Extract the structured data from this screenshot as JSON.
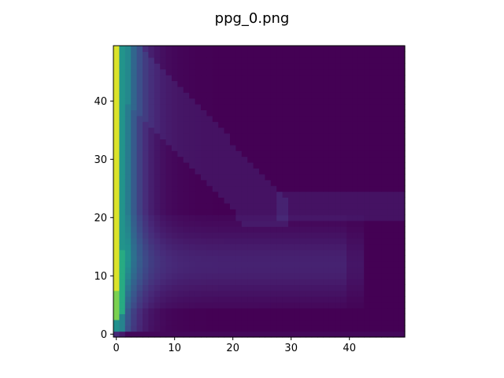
{
  "chart_data": {
    "type": "heatmap",
    "title": "ppg_0.png",
    "xlabel": "",
    "ylabel": "",
    "colormap": "viridis",
    "origin": "lower",
    "grid": false,
    "legend": "none",
    "shape": [
      50,
      50
    ],
    "xlim": [
      -0.5,
      49.5
    ],
    "ylim": [
      -0.5,
      49.5
    ],
    "xticks": [
      0,
      10,
      20,
      30,
      40
    ],
    "yticks": [
      0,
      10,
      20,
      30,
      40
    ],
    "xtick_labels": [
      "0",
      "10",
      "20",
      "30",
      "40"
    ],
    "ytick_labels": [
      "0",
      "10",
      "20",
      "30",
      "40"
    ],
    "value_range": [
      0,
      1
    ],
    "description_of_values": "Normalized intensity 0-1: column 0 brightest (~0.9-1.0), first few columns bright teal, a low-intensity band along rows ~5-20 extending to x~40, background ~0"
  },
  "colors": {
    "background": "#ffffff",
    "axis": "#000000",
    "viridis_low": "#440154",
    "viridis_high": "#fde725"
  }
}
